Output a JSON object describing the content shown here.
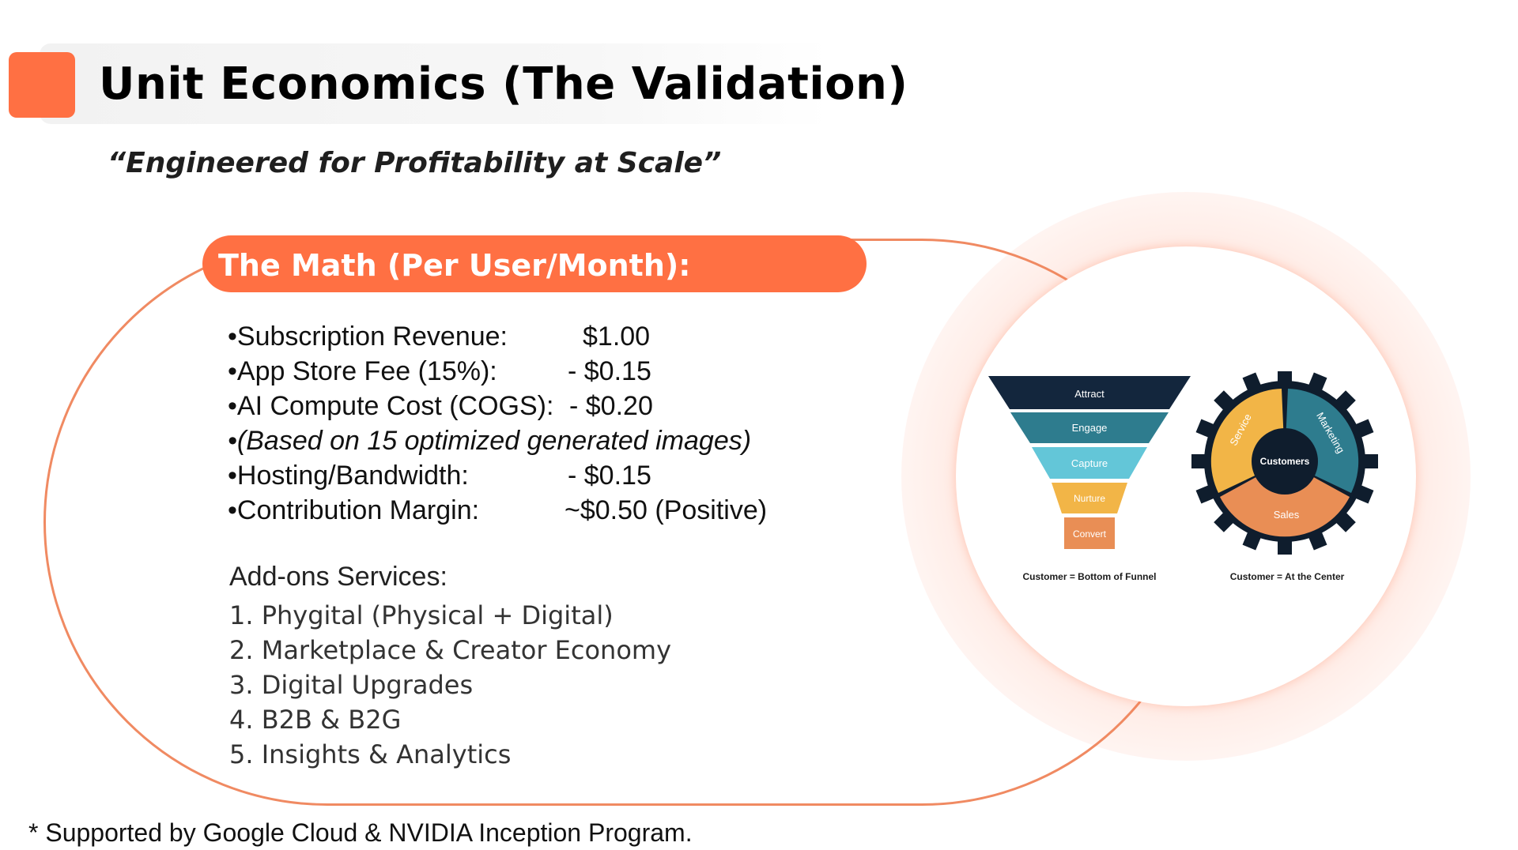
{
  "header": {
    "title": "Unit Economics (The Validation)",
    "subtitle": "“Engineered for Profitability at Scale”"
  },
  "math": {
    "heading": "The Math (Per User/Month):",
    "rows": [
      {
        "label": "•Subscription Revenue:",
        "value": "$1.00"
      },
      {
        "label": "•App Store Fee (15%):",
        "value": "- $0.15"
      },
      {
        "label": "•AI Compute Cost (COGS):",
        "value": "- $0.20"
      },
      {
        "label": "•(Based on 15 optimized generated images)",
        "value": ""
      },
      {
        "label": "•Hosting/Bandwidth:",
        "value": "- $0.15"
      },
      {
        "label": "•Contribution Margin:",
        "value": "~$0.50 (Positive)"
      }
    ]
  },
  "addons": {
    "heading": "Add-ons Services:",
    "items": [
      "1. Phygital (Physical + Digital)",
      "2. Marketplace & Creator Economy",
      "3. Digital Upgrades",
      "4. B2B & B2G",
      "5. Insights & Analytics"
    ]
  },
  "diagram": {
    "funnel": {
      "stages": [
        "Attract",
        "Engage",
        "Capture",
        "Nurture",
        "Convert"
      ],
      "caption": "Customer = Bottom of Funnel"
    },
    "wheel": {
      "center": "Customers",
      "segments": [
        "Service",
        "Marketing",
        "Sales"
      ],
      "caption": "Customer = At the Center"
    }
  },
  "footnote": "* Supported by Google Cloud & NVIDIA Inception Program.",
  "colors": {
    "accent": "#ff7043",
    "funnel_stages": [
      "#13263d",
      "#2e7c8e",
      "#63c6d8",
      "#f2b547",
      "#e98e55"
    ],
    "wheel_service": "#f2b547",
    "wheel_marketing": "#2e7c8e",
    "wheel_sales": "#e98e55",
    "gear": "#0f1d2d"
  }
}
